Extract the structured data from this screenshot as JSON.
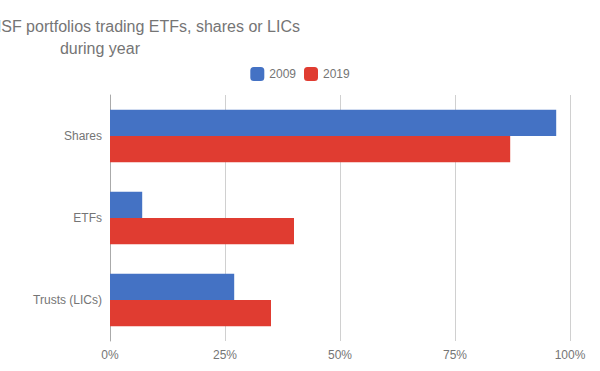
{
  "chart_data": {
    "type": "bar",
    "orientation": "horizontal",
    "title": "Percent of SMSF portfolios trading ETFs, shares or LICs\nduring year",
    "categories": [
      "Shares",
      "ETFs",
      "Trusts (LICs)"
    ],
    "series": [
      {
        "name": "2009",
        "color": "#4472C4",
        "values": [
          0.97,
          0.07,
          0.27
        ]
      },
      {
        "name": "2019",
        "color": "#E03C31",
        "values": [
          0.87,
          0.4,
          0.35
        ]
      }
    ],
    "xlim": [
      0,
      1.0
    ],
    "xticks": [
      {
        "value": 0.0,
        "label": "0%"
      },
      {
        "value": 0.25,
        "label": "25%"
      },
      {
        "value": 0.5,
        "label": "50%"
      },
      {
        "value": 0.75,
        "label": "75%"
      },
      {
        "value": 1.0,
        "label": "100%"
      }
    ],
    "grid": true,
    "legend": "top"
  }
}
